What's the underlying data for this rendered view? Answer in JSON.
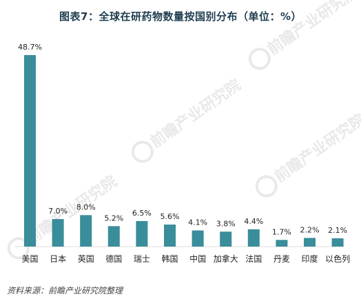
{
  "title": "图表7：全球在研药物数量按国别分布（单位：%）",
  "source": "资料来源：前瞻产业研究院整理",
  "watermark": "前瞻产业研究院",
  "colors": {
    "bar": "#3a8d9a",
    "title": "#1f3d4f",
    "watermark": "#e9e9e9"
  },
  "chart_data": {
    "type": "bar",
    "title": "图表7：全球在研药物数量按国别分布（单位：%）",
    "categories": [
      "美国",
      "日本",
      "英国",
      "德国",
      "瑞士",
      "韩国",
      "中国",
      "加拿大",
      "法国",
      "丹麦",
      "印度",
      "以色列"
    ],
    "values": [
      48.7,
      7.0,
      8.0,
      5.2,
      6.5,
      5.6,
      4.1,
      3.8,
      4.4,
      1.7,
      2.2,
      2.1
    ],
    "value_labels": [
      "48.7%",
      "7.0%",
      "8.0%",
      "5.2%",
      "6.5%",
      "5.6%",
      "4.1%",
      "3.8%",
      "4.4%",
      "1.7%",
      "2.2%",
      "2.1%"
    ],
    "unit": "%",
    "ylim": [
      0,
      50
    ],
    "grid": false,
    "legend": "none"
  }
}
